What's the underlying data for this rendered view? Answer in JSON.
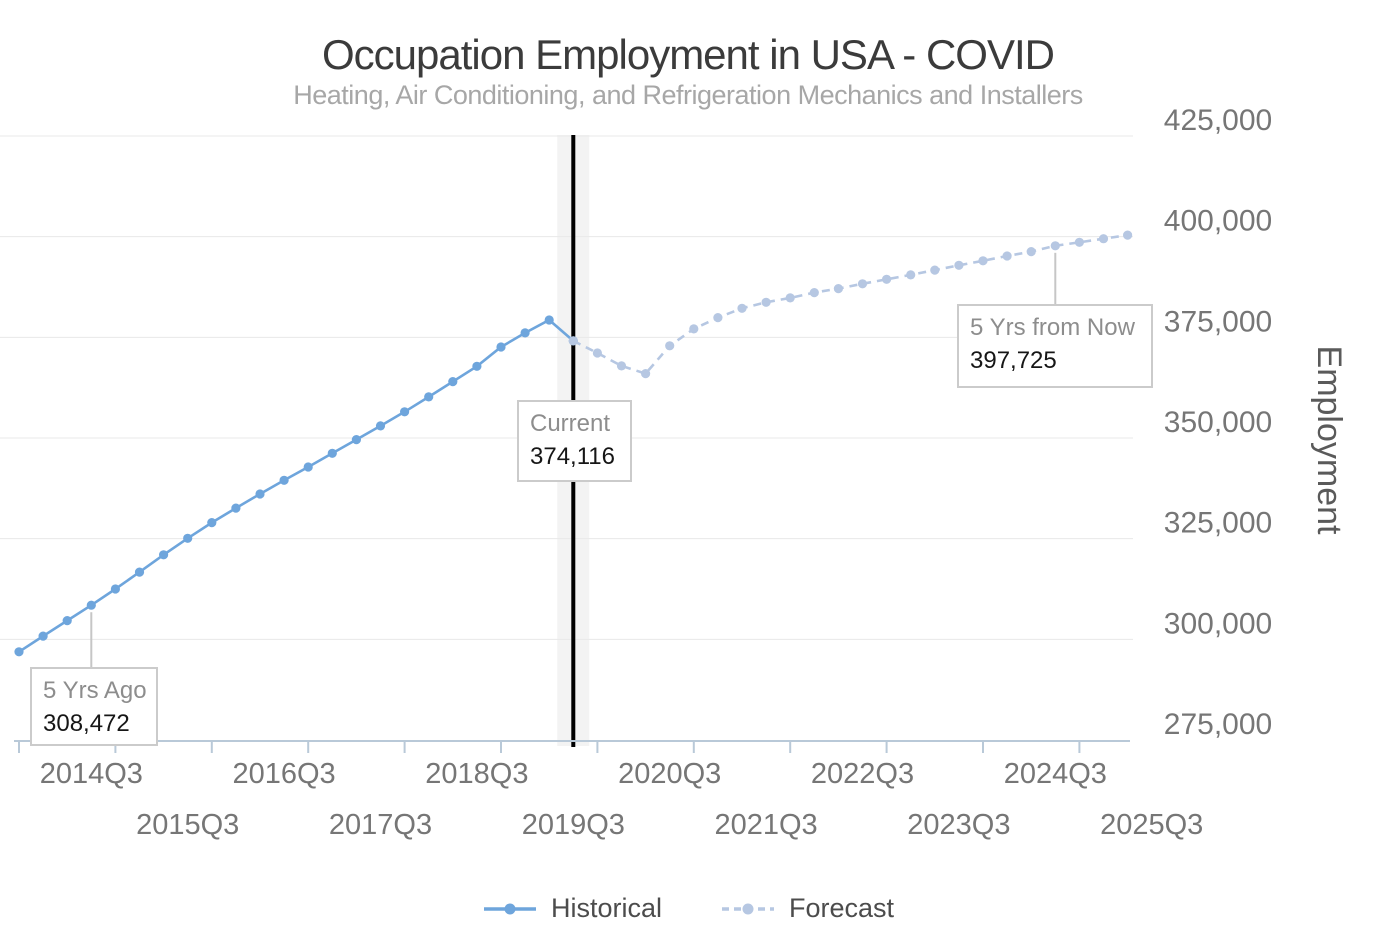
{
  "colors": {
    "historical": "#6ea5dc",
    "forecast": "#b6c7e2",
    "gridline": "#e8e8e8",
    "axis_line": "#b9c9d8",
    "tick_text": "#767676",
    "axis_title_text": "#5a5a5a",
    "title_text": "#3b3b3b",
    "subtitle_text": "#a7a7a7",
    "legend_text": "#4c4c4c",
    "current_line": "#000000",
    "current_band": "#f3f3f3",
    "callout_border": "#cbcbcb",
    "callout_label_text": "#8d8d8d",
    "callout_value_text": "#161616",
    "connector": "#c6c6c6"
  },
  "chart_data": {
    "type": "line",
    "title": "Occupation Employment in USA - COVID",
    "subtitle": "Heating, Air Conditioning, and Refrigeration Mechanics and Installers",
    "grid": "horizontal",
    "legend_position": "bottom",
    "y_axis": {
      "label": "Employment",
      "min": 275000,
      "max": 425000,
      "tick_step": 25000,
      "tick_labels": [
        "275,000",
        "300,000",
        "325,000",
        "350,000",
        "375,000",
        "400,000",
        "425,000"
      ]
    },
    "x_axis": {
      "tick_quarters": [
        "2013Q4",
        "2014Q4",
        "2015Q4",
        "2016Q4",
        "2017Q4",
        "2018Q4",
        "2019Q4",
        "2020Q4",
        "2021Q4",
        "2022Q4",
        "2023Q4",
        "2024Q4"
      ],
      "label_rows": [
        [
          "2014Q3",
          "2016Q3",
          "2018Q3",
          "2020Q3",
          "2022Q3",
          "2024Q3"
        ],
        [
          "2015Q3",
          "2017Q3",
          "2019Q3",
          "2021Q3",
          "2023Q3",
          "2025Q3"
        ]
      ]
    },
    "series": [
      {
        "name": "Historical",
        "style": "solid",
        "color": "#6ea5dc",
        "quarters": [
          "2013Q4",
          "2014Q1",
          "2014Q2",
          "2014Q3",
          "2014Q4",
          "2015Q1",
          "2015Q2",
          "2015Q3",
          "2015Q4",
          "2016Q1",
          "2016Q2",
          "2016Q3",
          "2016Q4",
          "2017Q1",
          "2017Q2",
          "2017Q3",
          "2017Q4",
          "2018Q1",
          "2018Q2",
          "2018Q3",
          "2018Q4",
          "2019Q1",
          "2019Q2",
          "2019Q3"
        ],
        "values": [
          296900,
          300800,
          304650,
          308472,
          312500,
          316700,
          321000,
          325100,
          329000,
          332600,
          336100,
          339500,
          342800,
          346200,
          349600,
          353000,
          356500,
          360200,
          364000,
          367800,
          372600,
          376100,
          379300,
          374116
        ]
      },
      {
        "name": "Forecast",
        "style": "dashed",
        "color": "#b6c7e2",
        "quarters": [
          "2019Q3",
          "2019Q4",
          "2020Q1",
          "2020Q2",
          "2020Q3",
          "2020Q4",
          "2021Q1",
          "2021Q2",
          "2021Q3",
          "2021Q4",
          "2022Q1",
          "2022Q2",
          "2022Q3",
          "2022Q4",
          "2023Q1",
          "2023Q2",
          "2023Q3",
          "2023Q4",
          "2024Q1",
          "2024Q2",
          "2024Q3",
          "2024Q4",
          "2025Q1",
          "2025Q2"
        ],
        "values": [
          374116,
          371100,
          367900,
          366000,
          372900,
          377100,
          379900,
          382200,
          383700,
          384800,
          386100,
          387100,
          388300,
          389400,
          390500,
          391700,
          392900,
          394000,
          395200,
          396300,
          397725,
          398600,
          399500,
          400400
        ]
      }
    ],
    "current_marker": {
      "quarter": "2019Q3"
    },
    "annotations": [
      {
        "label": "5 Yrs Ago",
        "quarter": "2014Q3",
        "value": 308472,
        "value_text": "308,472"
      },
      {
        "label": "Current",
        "quarter": "2019Q3",
        "value": 374116,
        "value_text": "374,116"
      },
      {
        "label": "5 Yrs from Now",
        "quarter": "2024Q3",
        "value": 397725,
        "value_text": "397,725"
      }
    ]
  }
}
